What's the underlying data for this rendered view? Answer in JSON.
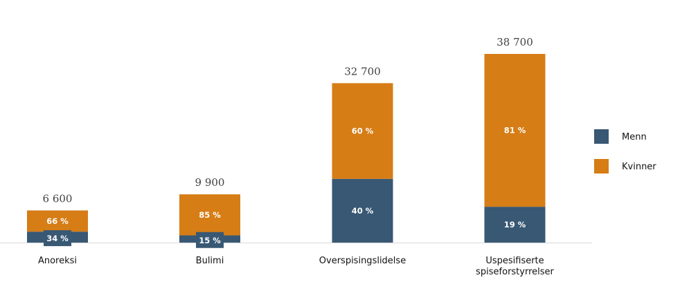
{
  "chart_data": {
    "type": "bar",
    "stacked": true,
    "title": "",
    "xlabel": "",
    "ylabel": "",
    "ylim": [
      0,
      38700
    ],
    "grid": false,
    "legend_position": "right",
    "categories": [
      [
        "Anoreksi"
      ],
      [
        "Bulimi"
      ],
      [
        "Overspisingslidelse"
      ],
      [
        "Uspesifiserte",
        "spiseforstyrrelser"
      ]
    ],
    "totals": [
      6600,
      9900,
      32700,
      38700
    ],
    "total_labels": [
      "6 600",
      "9 900",
      "32 700",
      "38 700"
    ],
    "series": [
      {
        "name": "Menn",
        "color": "#385874",
        "percent": [
          34,
          15,
          40,
          19
        ],
        "labels": [
          "34 %",
          "15 %",
          "40 %",
          "19 %"
        ]
      },
      {
        "name": "Kvinner",
        "color": "#d67d16",
        "percent": [
          66,
          85,
          60,
          81
        ],
        "labels": [
          "66 %",
          "85 %",
          "60 %",
          "81 %"
        ]
      }
    ]
  }
}
